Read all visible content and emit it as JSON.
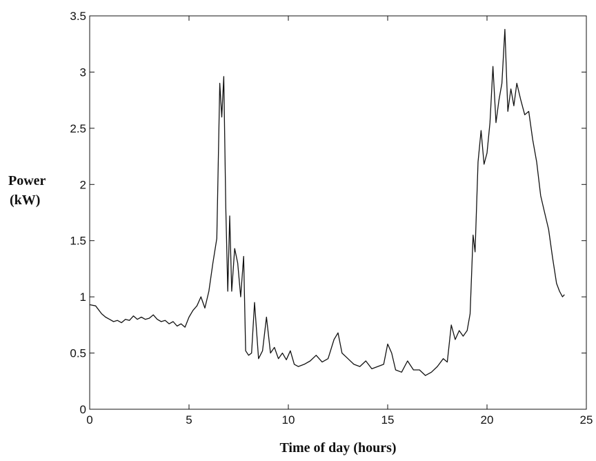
{
  "chart_data": {
    "type": "line",
    "title": "",
    "xlabel": "Time of day (hours)",
    "ylabel": [
      "Power",
      "(kW)"
    ],
    "xlim": [
      0,
      25
    ],
    "ylim": [
      0,
      3.5
    ],
    "xticks": [
      0,
      5,
      10,
      15,
      20,
      25
    ],
    "yticks": [
      0,
      0.5,
      1,
      1.5,
      2,
      2.5,
      3,
      3.5
    ],
    "xtick_labels": [
      "0",
      "5",
      "10",
      "15",
      "20",
      "25"
    ],
    "ytick_labels": [
      "0",
      "0.5",
      "1",
      "1.5",
      "2",
      "2.5",
      "3",
      "3.5"
    ],
    "grid": false,
    "line_color": "#111111",
    "series": [
      {
        "x": [
          0,
          0.3,
          0.6,
          0.8,
          1.0,
          1.2,
          1.4,
          1.6,
          1.8,
          2.0,
          2.2,
          2.4,
          2.6,
          2.8,
          3.0,
          3.2,
          3.4,
          3.6,
          3.8,
          4.0,
          4.2,
          4.4,
          4.6,
          4.8,
          5.0,
          5.2,
          5.4,
          5.6,
          5.8,
          6.0,
          6.2,
          6.4,
          6.55,
          6.65,
          6.75,
          6.85,
          6.95,
          7.05,
          7.15,
          7.3,
          7.45,
          7.6,
          7.75,
          7.85,
          8.0,
          8.15,
          8.3,
          8.5,
          8.7,
          8.9,
          9.1,
          9.3,
          9.5,
          9.7,
          9.9,
          10.1,
          10.3,
          10.5,
          10.8,
          11.1,
          11.4,
          11.7,
          12.0,
          12.3,
          12.5,
          12.7,
          13.0,
          13.3,
          13.6,
          13.9,
          14.2,
          14.5,
          14.8,
          15.0,
          15.2,
          15.4,
          15.7,
          16.0,
          16.3,
          16.6,
          16.9,
          17.2,
          17.5,
          17.8,
          18.0,
          18.2,
          18.4,
          18.6,
          18.8,
          19.0,
          19.15,
          19.3,
          19.4,
          19.55,
          19.7,
          19.85,
          20.0,
          20.15,
          20.3,
          20.45,
          20.6,
          20.75,
          20.9,
          21.05,
          21.2,
          21.35,
          21.5,
          21.7,
          21.9,
          22.1,
          22.3,
          22.5,
          22.7,
          22.9,
          23.1,
          23.3,
          23.5,
          23.65,
          23.8,
          23.9
        ],
        "y": [
          0.93,
          0.92,
          0.85,
          0.82,
          0.8,
          0.78,
          0.79,
          0.77,
          0.8,
          0.79,
          0.83,
          0.8,
          0.82,
          0.8,
          0.81,
          0.84,
          0.8,
          0.78,
          0.79,
          0.76,
          0.78,
          0.74,
          0.76,
          0.73,
          0.82,
          0.88,
          0.92,
          1.0,
          0.9,
          1.05,
          1.3,
          1.52,
          2.9,
          2.6,
          2.96,
          1.8,
          1.05,
          1.72,
          1.05,
          1.43,
          1.3,
          1.0,
          1.36,
          0.52,
          0.48,
          0.5,
          0.95,
          0.45,
          0.52,
          0.82,
          0.5,
          0.55,
          0.45,
          0.5,
          0.44,
          0.52,
          0.4,
          0.38,
          0.4,
          0.43,
          0.48,
          0.42,
          0.45,
          0.62,
          0.68,
          0.5,
          0.45,
          0.4,
          0.38,
          0.43,
          0.36,
          0.38,
          0.4,
          0.58,
          0.5,
          0.35,
          0.33,
          0.43,
          0.35,
          0.35,
          0.3,
          0.33,
          0.38,
          0.45,
          0.42,
          0.75,
          0.62,
          0.7,
          0.65,
          0.7,
          0.85,
          1.55,
          1.4,
          2.2,
          2.48,
          2.18,
          2.28,
          2.55,
          3.05,
          2.55,
          2.75,
          2.9,
          3.38,
          2.65,
          2.85,
          2.7,
          2.9,
          2.75,
          2.62,
          2.65,
          2.4,
          2.2,
          1.9,
          1.75,
          1.6,
          1.35,
          1.12,
          1.05,
          1.0,
          1.02
        ]
      }
    ]
  }
}
